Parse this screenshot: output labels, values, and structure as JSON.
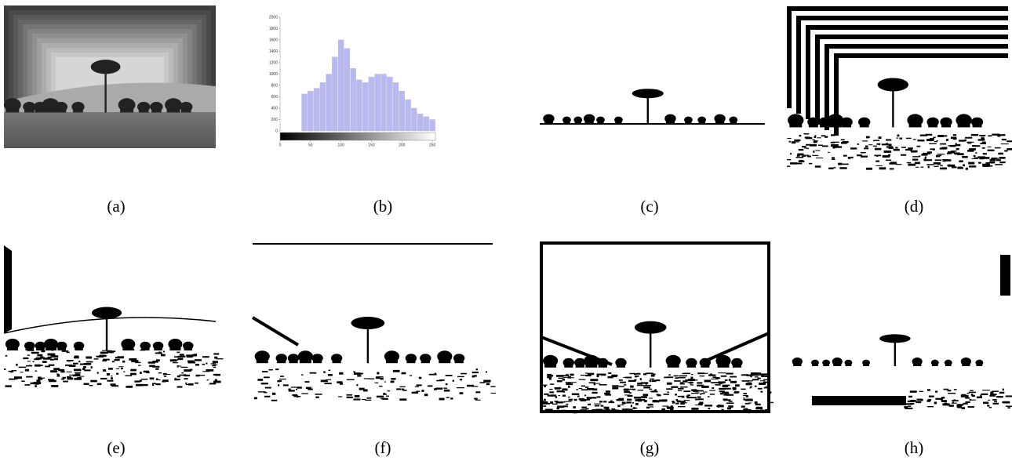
{
  "captions": [
    "(a)",
    "(b)",
    "(c)",
    "(d)",
    "(e)",
    "(f)",
    "(g)",
    "(h)"
  ],
  "chart_data": {
    "type": "bar",
    "x": [
      40,
      50,
      60,
      70,
      80,
      90,
      100,
      110,
      120,
      130,
      140,
      150,
      160,
      170,
      180,
      190,
      200,
      210,
      220,
      230,
      240,
      250
    ],
    "values": [
      650,
      700,
      750,
      850,
      1000,
      1300,
      1600,
      1450,
      1100,
      900,
      850,
      950,
      1000,
      1000,
      950,
      850,
      700,
      550,
      400,
      300,
      250,
      200
    ],
    "color": "#9a9af0",
    "xlim": [
      0,
      255
    ],
    "ylim": [
      0,
      2000
    ],
    "xticks": [
      0,
      50,
      100,
      150,
      200,
      250
    ],
    "yticks": [
      0,
      200,
      400,
      600,
      800,
      1000,
      1200,
      1400,
      1600,
      1800,
      2000
    ]
  }
}
